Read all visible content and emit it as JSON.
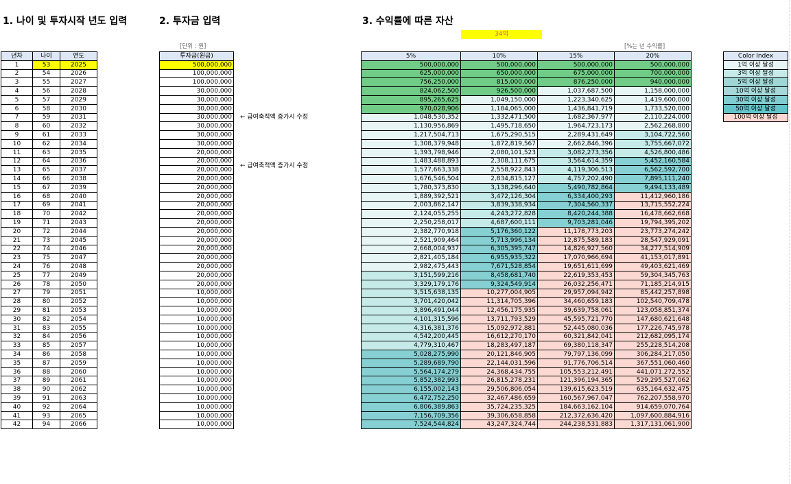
{
  "headings": {
    "section1": "1. 나이 및 투자시작 년도 입력",
    "section2": "2. 투자금 입력",
    "section3": "3. 수익률에 따른 자산"
  },
  "highlight": "34억",
  "unit_label": "[단위 : 원]",
  "rate_note": "[%는 년 수익률]",
  "left_headers": [
    "년차",
    "나이",
    "연도"
  ],
  "invest_header": "투자금(원금)",
  "rate_headers": [
    "5%",
    "10%",
    "15%",
    "20%"
  ],
  "notes": [
    "← 급여축적액 증가시 수정",
    "← 급여축적액 증가시 수정"
  ],
  "color_index": {
    "title": "Color Index",
    "items": [
      {
        "label": "1억 이상 달성",
        "color": "#e7f6f5"
      },
      {
        "label": "3억 이상 달성",
        "color": "#c5eae8"
      },
      {
        "label": "5억 이상 달성",
        "color": "#9ed7d6"
      },
      {
        "label": "10억 이상 달성",
        "color": "#a6d8d9"
      },
      {
        "label": "30억 이상 달성",
        "color": "#7fcdd0"
      },
      {
        "label": "50억 이상 달성",
        "color": "#62c3c9"
      },
      {
        "label": "100억 이상 달성",
        "color": "#fbd9d2"
      }
    ]
  },
  "colors": {
    "green": "#70cc86",
    "highlight": "#ffff00",
    "header": "#dde7f5"
  },
  "rows": [
    {
      "n": "1",
      "age": "53",
      "year": "2025",
      "inv": "500,000,000",
      "v": [
        "500,000,000",
        "500,000,000",
        "500,000,000",
        "500,000,000"
      ],
      "b": [
        "G",
        "G",
        "G",
        "G"
      ]
    },
    {
      "n": "2",
      "age": "54",
      "year": "2026",
      "inv": "100,000,000",
      "v": [
        "625,000,000",
        "650,000,000",
        "675,000,000",
        "700,000,000"
      ],
      "b": [
        "G",
        "G",
        "G",
        "G"
      ]
    },
    {
      "n": "3",
      "age": "55",
      "year": "2027",
      "inv": "100,000,000",
      "v": [
        "756,250,000",
        "815,000,000",
        "876,250,000",
        "940,000,000"
      ],
      "b": [
        "G",
        "G",
        "G",
        "G"
      ]
    },
    {
      "n": "4",
      "age": "56",
      "year": "2028",
      "inv": "30,000,000",
      "v": [
        "824,062,500",
        "926,500,000",
        "1,037,687,500",
        "1,158,000,000"
      ],
      "b": [
        "G",
        "G",
        "1",
        "1"
      ]
    },
    {
      "n": "5",
      "age": "57",
      "year": "2029",
      "inv": "30,000,000",
      "v": [
        "895,265,625",
        "1,049,150,000",
        "1,223,340,625",
        "1,419,600,000"
      ],
      "b": [
        "G",
        "1",
        "1",
        "1"
      ]
    },
    {
      "n": "6",
      "age": "58",
      "year": "2030",
      "inv": "30,000,000",
      "v": [
        "970,028,906",
        "1,184,065,000",
        "1,436,841,719",
        "1,733,520,000"
      ],
      "b": [
        "G",
        "1",
        "1",
        "1"
      ]
    },
    {
      "n": "7",
      "age": "59",
      "year": "2031",
      "inv": "30,000,000",
      "v": [
        "1,048,530,352",
        "1,332,471,500",
        "1,682,367,977",
        "2,110,224,000"
      ],
      "b": [
        "1",
        "1",
        "1",
        "1"
      ]
    },
    {
      "n": "8",
      "age": "60",
      "year": "2032",
      "inv": "30,000,000",
      "v": [
        "1,130,956,869",
        "1,495,718,650",
        "1,964,723,173",
        "2,562,268,800"
      ],
      "b": [
        "1",
        "1",
        "1",
        "1"
      ]
    },
    {
      "n": "9",
      "age": "61",
      "year": "2033",
      "inv": "30,000,000",
      "v": [
        "1,217,504,713",
        "1,675,290,515",
        "2,289,431,649",
        "3,104,722,560"
      ],
      "b": [
        "1",
        "1",
        "1",
        "3"
      ]
    },
    {
      "n": "10",
      "age": "62",
      "year": "2034",
      "inv": "30,000,000",
      "v": [
        "1,308,379,948",
        "1,872,819,567",
        "2,662,846,396",
        "3,755,667,072"
      ],
      "b": [
        "1",
        "1",
        "1",
        "3"
      ]
    },
    {
      "n": "11",
      "age": "63",
      "year": "2035",
      "inv": "20,000,000",
      "v": [
        "1,393,798,946",
        "2,080,101,523",
        "3,082,273,356",
        "4,526,800,486"
      ],
      "b": [
        "1",
        "1",
        "3",
        "3"
      ]
    },
    {
      "n": "12",
      "age": "64",
      "year": "2036",
      "inv": "20,000,000",
      "v": [
        "1,483,488,893",
        "2,308,111,675",
        "3,564,614,359",
        "5,452,160,584"
      ],
      "b": [
        "1",
        "1",
        "3",
        "5"
      ]
    },
    {
      "n": "13",
      "age": "65",
      "year": "2037",
      "inv": "20,000,000",
      "v": [
        "1,577,663,338",
        "2,558,922,843",
        "4,119,306,513",
        "6,562,592,700"
      ],
      "b": [
        "1",
        "1",
        "3",
        "5"
      ]
    },
    {
      "n": "14",
      "age": "66",
      "year": "2038",
      "inv": "20,000,000",
      "v": [
        "1,676,546,504",
        "2,834,815,127",
        "4,757,202,490",
        "7,895,111,240"
      ],
      "b": [
        "1",
        "1",
        "3",
        "5"
      ]
    },
    {
      "n": "15",
      "age": "67",
      "year": "2039",
      "inv": "20,000,000",
      "v": [
        "1,780,373,830",
        "3,138,296,640",
        "5,490,782,864",
        "9,494,133,489"
      ],
      "b": [
        "1",
        "3",
        "5",
        "5"
      ]
    },
    {
      "n": "16",
      "age": "68",
      "year": "2040",
      "inv": "20,000,000",
      "v": [
        "1,889,392,521",
        "3,472,126,304",
        "6,334,400,293",
        "11,412,960,186"
      ],
      "b": [
        "1",
        "3",
        "5",
        "P"
      ]
    },
    {
      "n": "17",
      "age": "69",
      "year": "2041",
      "inv": "20,000,000",
      "v": [
        "2,003,862,147",
        "3,839,338,934",
        "7,304,560,337",
        "13,715,552,224"
      ],
      "b": [
        "1",
        "3",
        "5",
        "P"
      ]
    },
    {
      "n": "18",
      "age": "70",
      "year": "2042",
      "inv": "20,000,000",
      "v": [
        "2,124,055,255",
        "4,243,272,828",
        "8,420,244,388",
        "16,478,662,668"
      ],
      "b": [
        "1",
        "3",
        "5",
        "P"
      ]
    },
    {
      "n": "19",
      "age": "71",
      "year": "2043",
      "inv": "20,000,000",
      "v": [
        "2,250,258,017",
        "4,687,600,111",
        "9,703,281,046",
        "19,794,395,202"
      ],
      "b": [
        "1",
        "3",
        "5",
        "P"
      ]
    },
    {
      "n": "20",
      "age": "72",
      "year": "2044",
      "inv": "20,000,000",
      "v": [
        "2,382,770,918",
        "5,176,360,122",
        "11,178,773,203",
        "23,773,274,242"
      ],
      "b": [
        "1",
        "5",
        "P",
        "P"
      ]
    },
    {
      "n": "21",
      "age": "73",
      "year": "2045",
      "inv": "20,000,000",
      "v": [
        "2,521,909,464",
        "5,713,996,134",
        "12,875,589,183",
        "28,547,929,091"
      ],
      "b": [
        "1",
        "5",
        "P",
        "P"
      ]
    },
    {
      "n": "22",
      "age": "74",
      "year": "2046",
      "inv": "20,000,000",
      "v": [
        "2,668,004,937",
        "6,305,395,747",
        "14,826,927,560",
        "34,277,514,909"
      ],
      "b": [
        "1",
        "5",
        "P",
        "P"
      ]
    },
    {
      "n": "23",
      "age": "75",
      "year": "2047",
      "inv": "20,000,000",
      "v": [
        "2,821,405,184",
        "6,955,935,322",
        "17,070,966,694",
        "41,153,017,891"
      ],
      "b": [
        "1",
        "5",
        "P",
        "P"
      ]
    },
    {
      "n": "24",
      "age": "76",
      "year": "2048",
      "inv": "20,000,000",
      "v": [
        "2,982,475,443",
        "7,671,528,854",
        "19,651,611,699",
        "49,403,621,469"
      ],
      "b": [
        "1",
        "5",
        "P",
        "P"
      ]
    },
    {
      "n": "25",
      "age": "77",
      "year": "2049",
      "inv": "20,000,000",
      "v": [
        "3,151,599,216",
        "8,458,681,740",
        "22,619,353,453",
        "59,304,345,763"
      ],
      "b": [
        "3",
        "5",
        "P",
        "P"
      ]
    },
    {
      "n": "26",
      "age": "78",
      "year": "2050",
      "inv": "20,000,000",
      "v": [
        "3,329,179,176",
        "9,324,549,914",
        "26,032,256,471",
        "71,185,214,915"
      ],
      "b": [
        "3",
        "5",
        "P",
        "P"
      ]
    },
    {
      "n": "27",
      "age": "79",
      "year": "2051",
      "inv": "10,000,000",
      "v": [
        "3,515,638,135",
        "10,277,004,905",
        "29,957,094,942",
        "85,442,257,898"
      ],
      "b": [
        "3",
        "P",
        "P",
        "P"
      ]
    },
    {
      "n": "28",
      "age": "80",
      "year": "2052",
      "inv": "10,000,000",
      "v": [
        "3,701,420,042",
        "11,314,705,396",
        "34,460,659,183",
        "102,540,709,478"
      ],
      "b": [
        "3",
        "P",
        "P",
        "P"
      ]
    },
    {
      "n": "29",
      "age": "81",
      "year": "2053",
      "inv": "10,000,000",
      "v": [
        "3,896,491,044",
        "12,456,175,935",
        "39,639,758,061",
        "123,058,851,374"
      ],
      "b": [
        "3",
        "P",
        "P",
        "P"
      ]
    },
    {
      "n": "30",
      "age": "82",
      "year": "2054",
      "inv": "10,000,000",
      "v": [
        "4,101,315,596",
        "13,711,793,529",
        "45,595,721,770",
        "147,680,621,648"
      ],
      "b": [
        "3",
        "P",
        "P",
        "P"
      ]
    },
    {
      "n": "31",
      "age": "83",
      "year": "2055",
      "inv": "10,000,000",
      "v": [
        "4,316,381,376",
        "15,092,972,881",
        "52,445,080,036",
        "177,226,745,978"
      ],
      "b": [
        "3",
        "P",
        "P",
        "P"
      ]
    },
    {
      "n": "32",
      "age": "84",
      "year": "2056",
      "inv": "10,000,000",
      "v": [
        "4,542,200,445",
        "16,612,270,170",
        "60,321,842,041",
        "212,682,095,174"
      ],
      "b": [
        "3",
        "P",
        "P",
        "P"
      ]
    },
    {
      "n": "33",
      "age": "85",
      "year": "2057",
      "inv": "10,000,000",
      "v": [
        "4,779,310,467",
        "18,283,497,187",
        "69,380,118,347",
        "255,228,514,208"
      ],
      "b": [
        "3",
        "P",
        "P",
        "P"
      ]
    },
    {
      "n": "34",
      "age": "86",
      "year": "2058",
      "inv": "10,000,000",
      "v": [
        "5,028,275,990",
        "20,121,846,905",
        "79,797,136,099",
        "306,284,217,050"
      ],
      "b": [
        "5",
        "P",
        "P",
        "P"
      ]
    },
    {
      "n": "35",
      "age": "87",
      "year": "2059",
      "inv": "10,000,000",
      "v": [
        "5,289,689,790",
        "22,144,031,596",
        "91,776,706,514",
        "367,551,060,460"
      ],
      "b": [
        "5",
        "P",
        "P",
        "P"
      ]
    },
    {
      "n": "36",
      "age": "88",
      "year": "2060",
      "inv": "10,000,000",
      "v": [
        "5,564,174,279",
        "24,368,434,755",
        "105,553,212,491",
        "441,071,272,552"
      ],
      "b": [
        "5",
        "P",
        "P",
        "P"
      ]
    },
    {
      "n": "37",
      "age": "89",
      "year": "2061",
      "inv": "10,000,000",
      "v": [
        "5,852,382,993",
        "26,815,278,231",
        "121,396,194,365",
        "529,295,527,062"
      ],
      "b": [
        "5",
        "P",
        "P",
        "P"
      ]
    },
    {
      "n": "38",
      "age": "90",
      "year": "2062",
      "inv": "10,000,000",
      "v": [
        "6,155,002,143",
        "29,506,806,054",
        "139,615,623,519",
        "635,164,632,475"
      ],
      "b": [
        "5",
        "P",
        "P",
        "P"
      ]
    },
    {
      "n": "39",
      "age": "91",
      "year": "2063",
      "inv": "10,000,000",
      "v": [
        "6,472,752,250",
        "32,467,486,659",
        "160,567,967,047",
        "762,207,558,970"
      ],
      "b": [
        "5",
        "P",
        "P",
        "P"
      ]
    },
    {
      "n": "40",
      "age": "92",
      "year": "2064",
      "inv": "10,000,000",
      "v": [
        "6,806,389,863",
        "35,724,235,325",
        "184,663,162,104",
        "914,659,070,764"
      ],
      "b": [
        "5",
        "P",
        "P",
        "P"
      ]
    },
    {
      "n": "41",
      "age": "93",
      "year": "2065",
      "inv": "10,000,000",
      "v": [
        "7,156,709,356",
        "39,306,658,858",
        "212,372,636,420",
        "1,097,600,884,916"
      ],
      "b": [
        "5",
        "P",
        "P",
        "P"
      ]
    },
    {
      "n": "42",
      "age": "94",
      "year": "2066",
      "inv": "10,000,000",
      "v": [
        "7,524,544,824",
        "43,247,324,744",
        "244,238,531,883",
        "1,317,131,061,900"
      ],
      "b": [
        "5",
        "P",
        "P",
        "P"
      ]
    }
  ]
}
